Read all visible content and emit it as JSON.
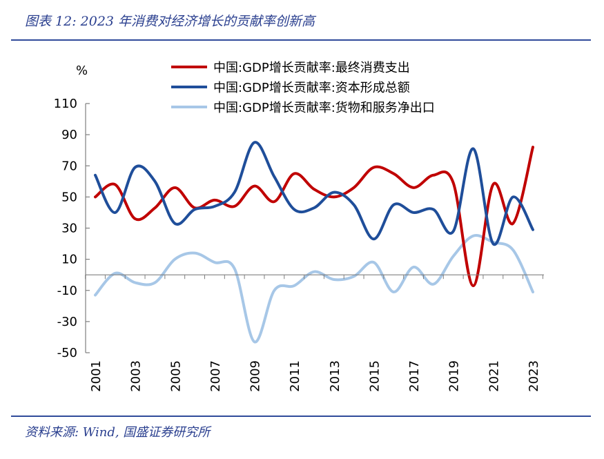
{
  "header": {
    "title": "图表 12:  2023 年消费对经济增长的贡献率创新高"
  },
  "footer": {
    "source": "资料来源:  Wind,  国盛证券研究所"
  },
  "colors": {
    "rule": "#2f4a9a",
    "axis": "#7f7f7f"
  },
  "chart_data": {
    "type": "line",
    "ylabel": "%",
    "ylim": [
      -50,
      110
    ],
    "yticks": [
      110,
      90,
      70,
      50,
      30,
      10,
      -10,
      -30,
      -50
    ],
    "x": [
      2001,
      2002,
      2003,
      2004,
      2005,
      2006,
      2007,
      2008,
      2009,
      2010,
      2011,
      2012,
      2013,
      2014,
      2015,
      2016,
      2017,
      2018,
      2019,
      2020,
      2021,
      2022,
      2023
    ],
    "xtick_labels": [
      "2001",
      "2003",
      "2005",
      "2007",
      "2009",
      "2011",
      "2013",
      "2015",
      "2017",
      "2019",
      "2021",
      "2023"
    ],
    "legend_position": "top",
    "series": [
      {
        "name": "中国:GDP增长贡献率:最终消费支出",
        "color": "#c00000",
        "values": [
          50,
          58,
          36,
          43,
          56,
          43,
          48,
          44,
          57,
          47,
          65,
          55,
          50,
          56,
          69,
          65,
          56,
          64,
          59,
          -7,
          58,
          33,
          82
        ]
      },
      {
        "name": "中国:GDP增长贡献率:资本形成总额",
        "color": "#1f4e9a",
        "values": [
          64,
          40,
          69,
          60,
          33,
          42,
          44,
          53,
          85,
          63,
          42,
          43,
          53,
          45,
          23,
          45,
          40,
          42,
          28,
          81,
          20,
          50,
          29
        ]
      },
      {
        "name": "中国:GDP增长贡献率:货物和服务净出口",
        "color": "#a7c7e7",
        "values": [
          -13,
          1,
          -5,
          -5,
          10,
          14,
          8,
          4,
          -43,
          -10,
          -7,
          2,
          -3,
          -1,
          8,
          -11,
          5,
          -6,
          12,
          25,
          21,
          16,
          -11
        ]
      }
    ]
  }
}
